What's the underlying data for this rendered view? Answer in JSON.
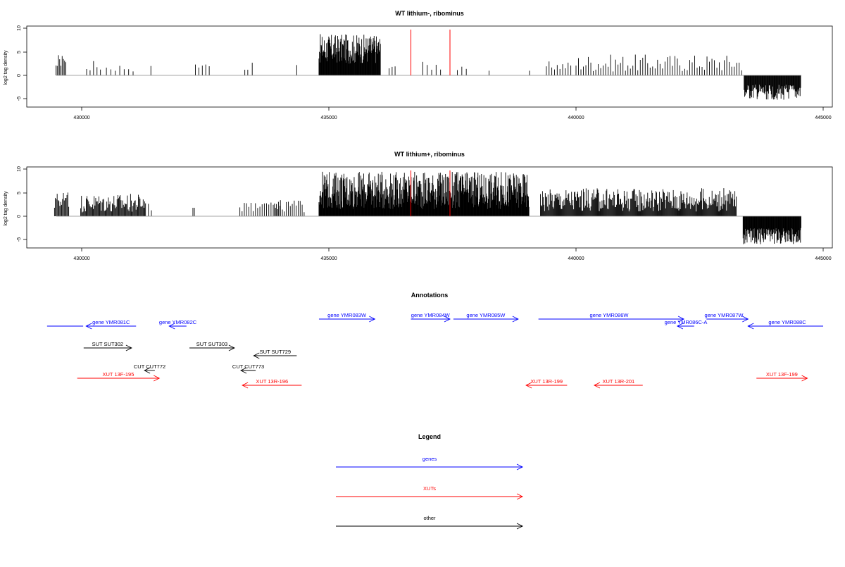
{
  "panels": [
    {
      "title": "WT lithium-, ribominus",
      "ylabel": "log2 tag density",
      "yticks": [
        "-5",
        "0",
        "5",
        "10"
      ],
      "xticks": [
        "430000",
        "435000",
        "440000",
        "445000"
      ]
    },
    {
      "title": "WT lithium+, ribominus",
      "ylabel": "log2 tag density",
      "yticks": [
        "-5",
        "0",
        "5",
        "10"
      ],
      "xticks": [
        "430000",
        "435000",
        "440000",
        "445000"
      ]
    }
  ],
  "annotations_title": "Annotations",
  "legend_title": "Legend",
  "colors": {
    "genes": "#0000ff",
    "xuts": "#ff0000",
    "other": "#000000",
    "density": "#000000",
    "marker": "#ff0000"
  },
  "annotations": [
    {
      "label": "",
      "start": 429300,
      "end": 430030,
      "dir": "none",
      "color": "genes"
    },
    {
      "label": "gene YMR081C",
      "start": 430090,
      "end": 431100,
      "dir": "left",
      "color": "genes"
    },
    {
      "label": "gene YMR082C",
      "start": 431770,
      "end": 432120,
      "dir": "left",
      "color": "genes"
    },
    {
      "label": "gene YMR083W",
      "start": 434800,
      "end": 435930,
      "dir": "right",
      "color": "genes"
    },
    {
      "label": "gene YMR084W",
      "start": 436660,
      "end": 437450,
      "dir": "right",
      "color": "genes"
    },
    {
      "label": "gene YMR085W",
      "start": 437520,
      "end": 438830,
      "dir": "right",
      "color": "genes"
    },
    {
      "label": "gene YMR086W",
      "start": 439240,
      "end": 442180,
      "dir": "right",
      "color": "genes"
    },
    {
      "label": "gene YMR086C-A",
      "start": 442050,
      "end": 442390,
      "dir": "left",
      "color": "genes"
    },
    {
      "label": "gene YMR087W",
      "start": 442640,
      "end": 443480,
      "dir": "right",
      "color": "genes"
    },
    {
      "label": "gene YMR088C",
      "start": 443480,
      "end": 445000,
      "dir": "left",
      "color": "genes"
    },
    {
      "label": "SUT SUT302",
      "start": 430040,
      "end": 431010,
      "dir": "right",
      "color": "other"
    },
    {
      "label": "SUT SUT303",
      "start": 432180,
      "end": 433090,
      "dir": "right",
      "color": "other"
    },
    {
      "label": "SUT SUT729",
      "start": 433480,
      "end": 434350,
      "dir": "left",
      "color": "other"
    },
    {
      "label": "CUT CUT772",
      "start": 431270,
      "end": 431480,
      "dir": "left",
      "color": "other"
    },
    {
      "label": "CUT CUT773",
      "start": 433220,
      "end": 433520,
      "dir": "left",
      "color": "other"
    },
    {
      "label": "XUT 13F-195",
      "start": 429910,
      "end": 431570,
      "dir": "right",
      "color": "xuts"
    },
    {
      "label": "XUT 13R-196",
      "start": 433250,
      "end": 434450,
      "dir": "left",
      "color": "xuts"
    },
    {
      "label": "XUT 13R-199",
      "start": 438990,
      "end": 439820,
      "dir": "left",
      "color": "xuts"
    },
    {
      "label": "XUT 13R-201",
      "start": 440370,
      "end": 441350,
      "dir": "left",
      "color": "xuts"
    },
    {
      "label": "XUT 13F-199",
      "start": 443650,
      "end": 444680,
      "dir": "right",
      "color": "xuts"
    }
  ],
  "legend_items": [
    {
      "label": "genes",
      "color": "genes"
    },
    {
      "label": "XUTs",
      "color": "xuts"
    },
    {
      "label": "other",
      "color": "other"
    }
  ],
  "chart_data": [
    {
      "type": "bar",
      "title": "WT lithium-, ribominus",
      "xlabel": "",
      "ylabel": "log2 tag density",
      "xlim": [
        428650,
        445100
      ],
      "ylim": [
        -6.5,
        10
      ],
      "markers": [
        436660,
        437450
      ],
      "segments": [
        {
          "start": 429480,
          "end": 429680,
          "step": 25,
          "lo": -4.5,
          "hi": -1.8,
          "sign": -1
        },
        {
          "start": 430100,
          "end": 430420,
          "step": 70,
          "lo": 0.8,
          "hi": 3.2,
          "sign": 1
        },
        {
          "start": 430500,
          "end": 431050,
          "step": 90,
          "lo": 0.8,
          "hi": 2.5,
          "sign": 1
        },
        {
          "start": 431400,
          "end": 431420,
          "step": 30,
          "lo": -2.0,
          "hi": -2.0,
          "sign": -1
        },
        {
          "start": 432300,
          "end": 432600,
          "step": 70,
          "lo": -2.5,
          "hi": -1.5,
          "sign": -1
        },
        {
          "start": 433300,
          "end": 433400,
          "step": 60,
          "lo": -1.2,
          "hi": -1.2,
          "sign": -1
        },
        {
          "start": 433450,
          "end": 433500,
          "step": 60,
          "lo": -2.7,
          "hi": -2.7,
          "sign": -1
        },
        {
          "start": 434350,
          "end": 434370,
          "step": 30,
          "lo": 2.2,
          "hi": 2.2,
          "sign": 1
        },
        {
          "start": 434800,
          "end": 436050,
          "step": 9,
          "lo": 2.5,
          "hi": 8.8,
          "sign": 1
        },
        {
          "start": 436220,
          "end": 436350,
          "step": 60,
          "lo": 1.5,
          "hi": 2.5,
          "sign": 1
        },
        {
          "start": 436900,
          "end": 437300,
          "step": 90,
          "lo": 1.0,
          "hi": 3.0,
          "sign": 1
        },
        {
          "start": 437600,
          "end": 437800,
          "step": 90,
          "lo": 0.8,
          "hi": 3.0,
          "sign": 1
        },
        {
          "start": 438240,
          "end": 438260,
          "step": 30,
          "lo": 1.0,
          "hi": 1.0,
          "sign": 1
        },
        {
          "start": 439060,
          "end": 439080,
          "step": 30,
          "lo": -1.0,
          "hi": -1.0,
          "sign": -1
        },
        {
          "start": 439400,
          "end": 439900,
          "step": 55,
          "lo": 1.0,
          "hi": 3.0,
          "sign": 1
        },
        {
          "start": 440000,
          "end": 443350,
          "step": 50,
          "lo": 0.8,
          "hi": 4.5,
          "sign": 1
        },
        {
          "start": 443400,
          "end": 444550,
          "step": 11,
          "lo": 2.0,
          "hi": 5.3,
          "sign": -1
        }
      ]
    },
    {
      "type": "bar",
      "title": "WT lithium+, ribominus",
      "xlabel": "",
      "ylabel": "log2 tag density",
      "xlim": [
        428650,
        445100
      ],
      "ylim": [
        -6.5,
        10
      ],
      "markers": [
        436660,
        437450
      ],
      "segments": [
        {
          "start": 429450,
          "end": 429750,
          "step": 18,
          "lo": -5.2,
          "hi": -1.5,
          "sign": -1
        },
        {
          "start": 429980,
          "end": 431300,
          "step": 16,
          "lo": 0.8,
          "hi": 4.8,
          "sign": 1
        },
        {
          "start": 431350,
          "end": 431450,
          "step": 60,
          "lo": -2.8,
          "hi": -1.0,
          "sign": -1
        },
        {
          "start": 432250,
          "end": 432300,
          "step": 30,
          "lo": 1.8,
          "hi": 1.8,
          "sign": 1
        },
        {
          "start": 433200,
          "end": 434050,
          "step": 45,
          "lo": -3.0,
          "hi": -1.0,
          "sign": -1
        },
        {
          "start": 433900,
          "end": 434500,
          "step": 40,
          "lo": 0.8,
          "hi": 3.5,
          "sign": 1
        },
        {
          "start": 434800,
          "end": 439050,
          "step": 8,
          "lo": 1.5,
          "hi": 9.5,
          "sign": 1
        },
        {
          "start": 439280,
          "end": 443250,
          "step": 14,
          "lo": 1.0,
          "hi": 6.0,
          "sign": 1
        },
        {
          "start": 443380,
          "end": 444550,
          "step": 9,
          "lo": 2.5,
          "hi": 6.0,
          "sign": -1
        }
      ]
    }
  ]
}
